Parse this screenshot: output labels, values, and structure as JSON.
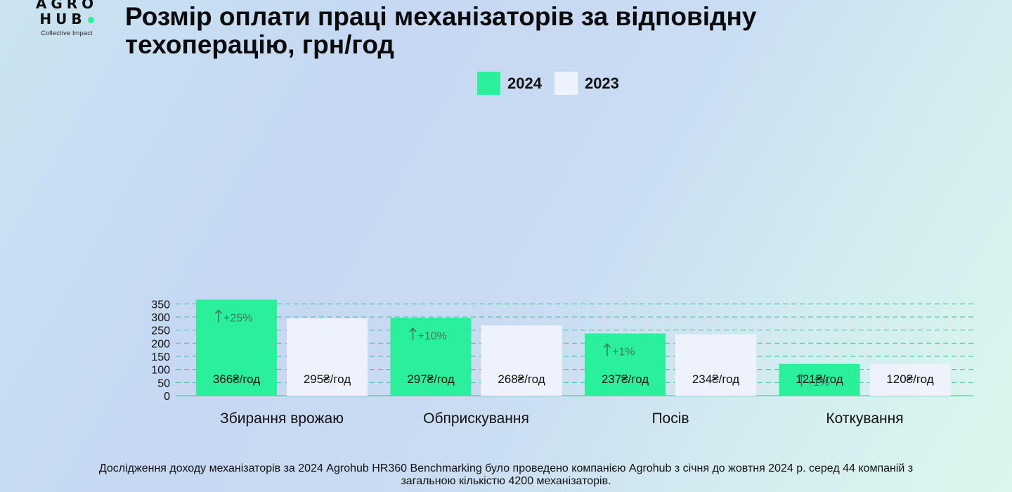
{
  "logo": {
    "line1": "AGRO",
    "line2": "HUB",
    "tagline": "Collective Impact"
  },
  "title": "Розмір оплати праці механізаторів за відповідну техоперацію, грн/год",
  "colors": {
    "series_2024": "#2af09b",
    "series_2023": "#edf2fc",
    "grid": "#3fbf9a",
    "text": "#111111",
    "change_text": "#3d7a66"
  },
  "chart_data": {
    "type": "bar",
    "categories": [
      "Збирання врожаю",
      "Обприскування",
      "Посів",
      "Коткування"
    ],
    "series": [
      {
        "name": "2024",
        "values": [
          366,
          297,
          237,
          121
        ],
        "labels": [
          "366₴/год",
          "297₴/год",
          "237₴/год",
          "121₴/год"
        ],
        "changes": [
          "+25%",
          "+10%",
          "+1%",
          "+1%"
        ]
      },
      {
        "name": "2023",
        "values": [
          295,
          268,
          234,
          120
        ],
        "labels": [
          "295₴/год",
          "268₴/год",
          "234₴/год",
          "120₴/год"
        ]
      }
    ],
    "yticks": [
      0,
      50,
      100,
      150,
      200,
      250,
      300,
      350
    ],
    "ylim": [
      0,
      380
    ],
    "grid": true,
    "legend": "top"
  },
  "footnote": "Дослідження доходу механізаторів за 2024 Agrohub HR360 Benchmarking було проведено компанією Agrohub з січня до жовтня 2024 р. серед 44 компаній з загальною кількістю 4200 механізаторів."
}
